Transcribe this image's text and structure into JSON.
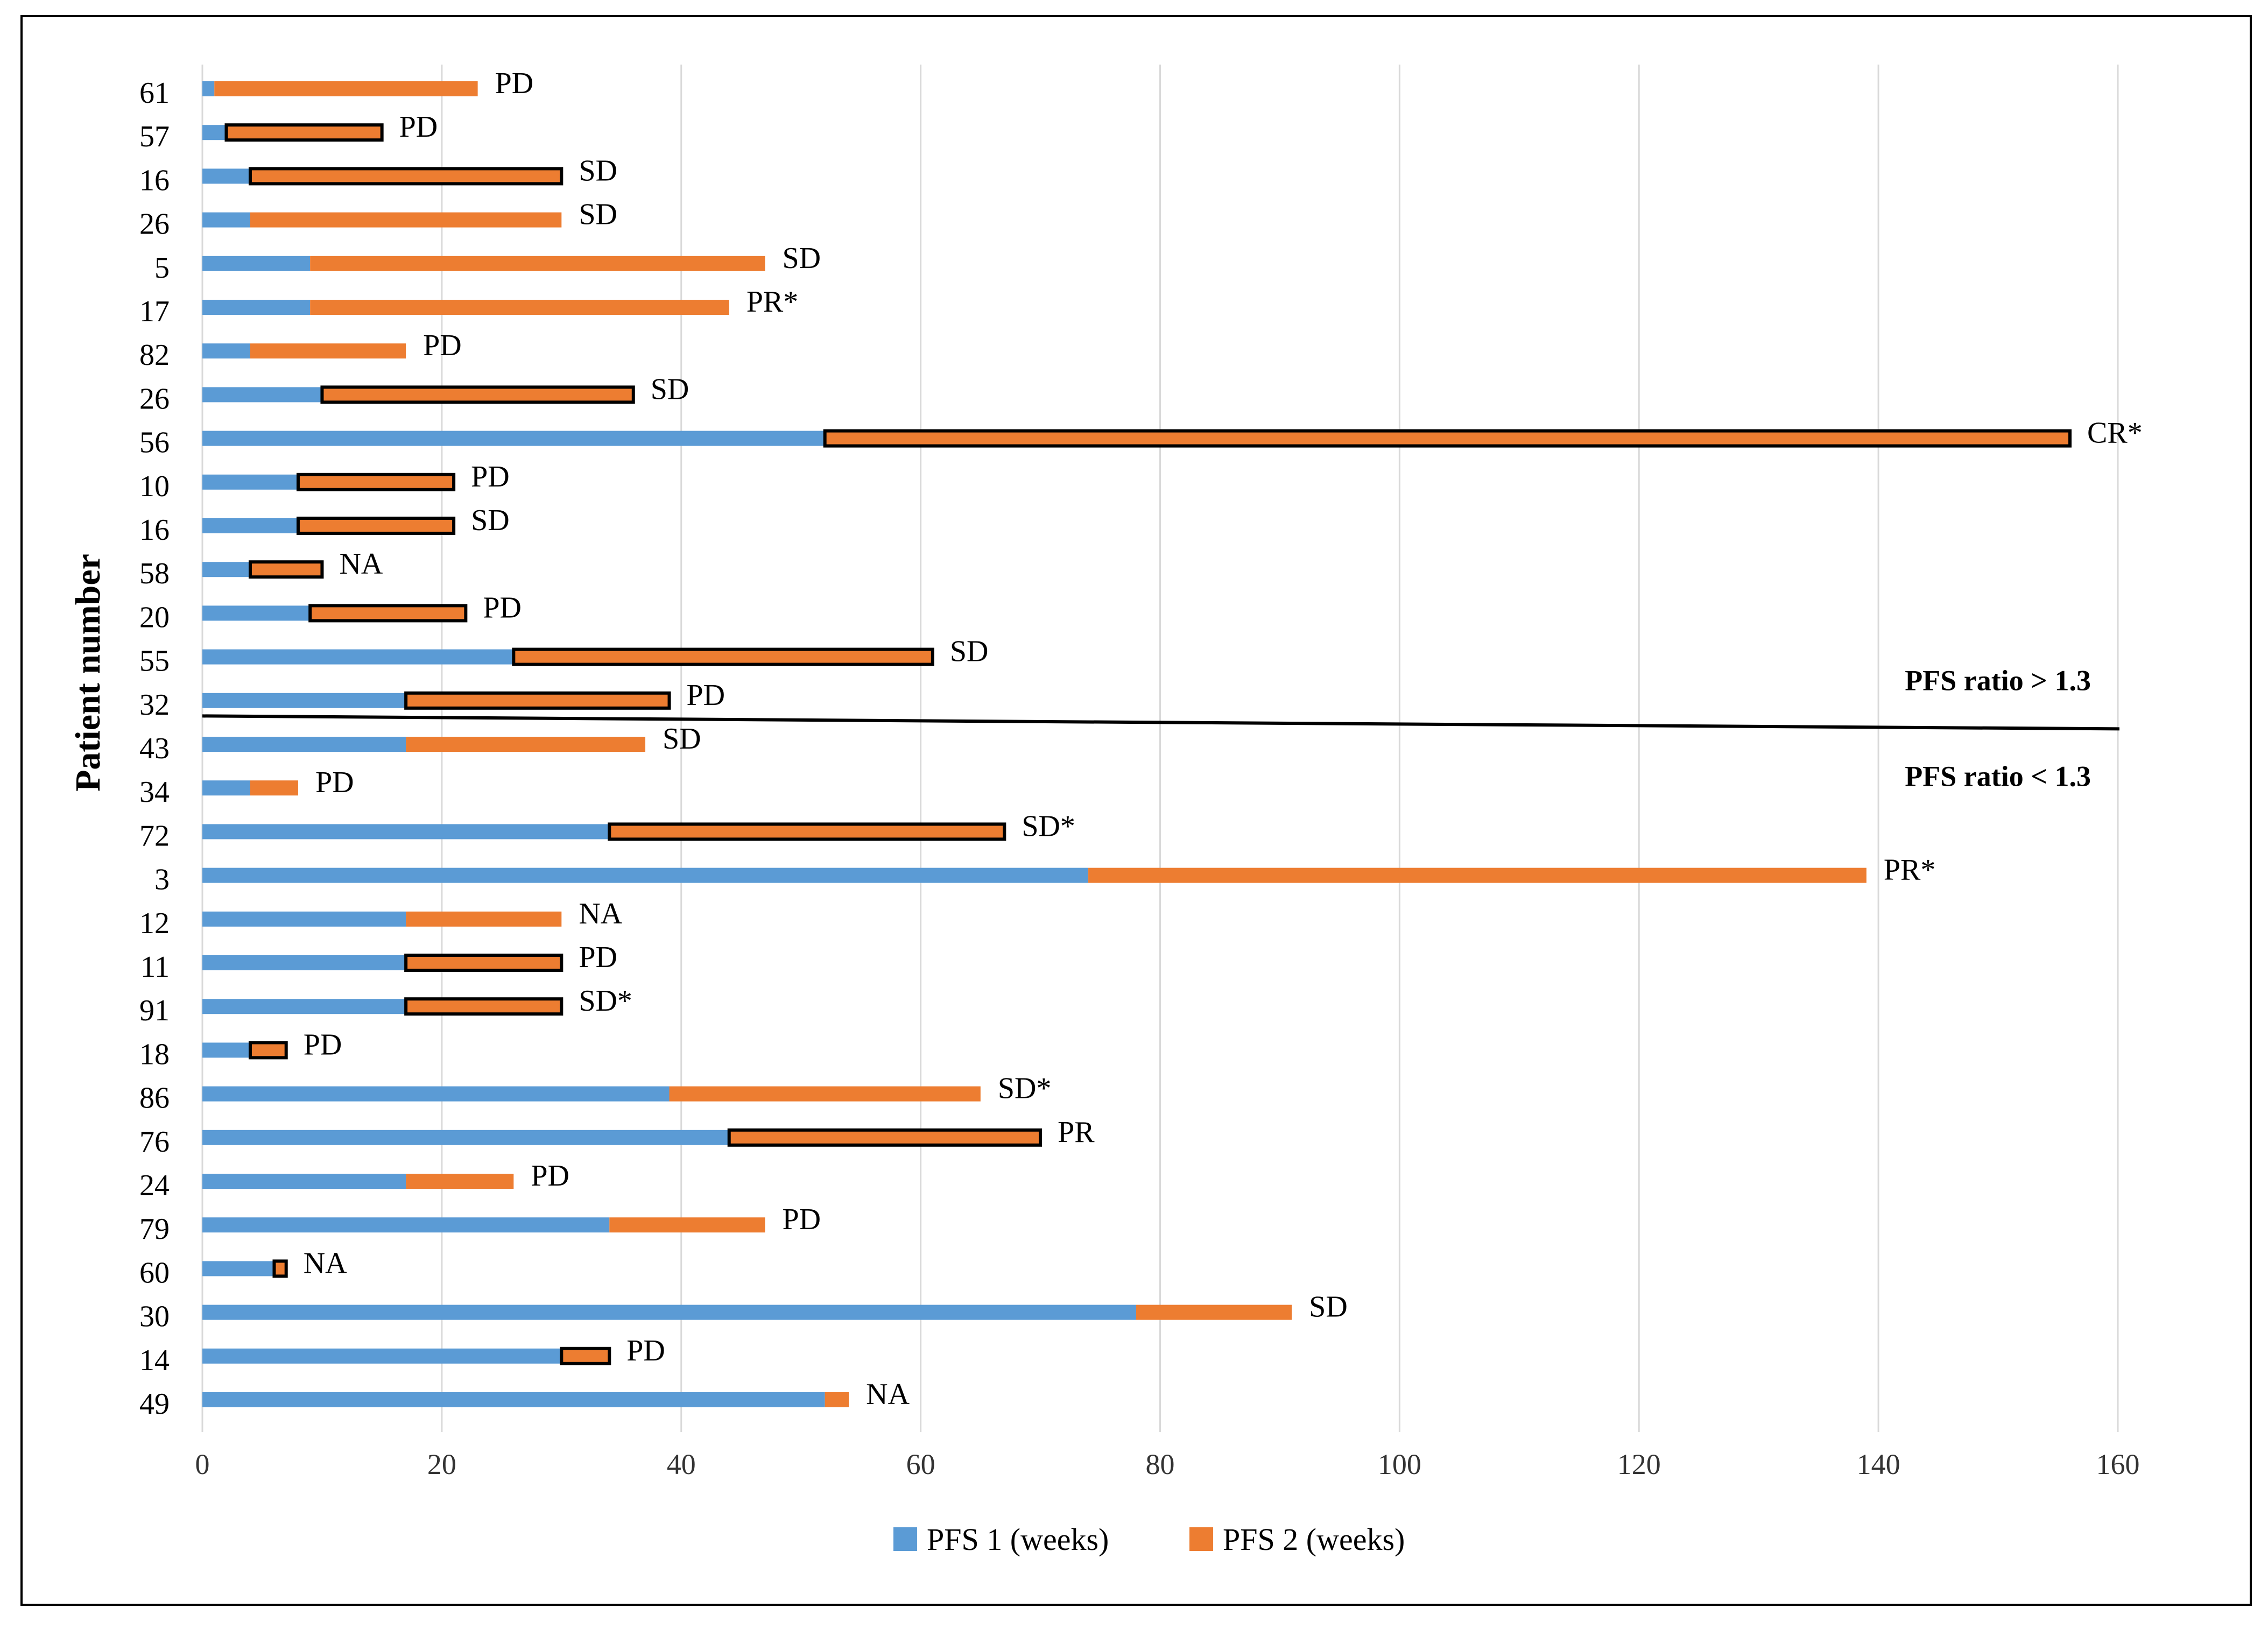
{
  "chart_data": {
    "type": "bar",
    "orientation": "horizontal",
    "stacked": true,
    "title": "",
    "xlabel": "",
    "ylabel": "Patient number",
    "xlim": [
      0,
      160
    ],
    "xticks": [
      0,
      20,
      40,
      60,
      80,
      100,
      120,
      140,
      160
    ],
    "grid": "vertical",
    "legend_position": "bottom",
    "colors": {
      "pfs1": "#5B9BD5",
      "pfs2": "#ED7D31",
      "outline": "#000000",
      "divider": "#000000",
      "gridline": "#D9D9D9"
    },
    "series": [
      {
        "name": "PFS 1 (weeks)",
        "key": "pfs1"
      },
      {
        "name": "PFS 2 (weeks)",
        "key": "pfs2"
      }
    ],
    "rows": [
      {
        "patient": "61",
        "pfs1": 1,
        "pfs2": 22,
        "response": "PD",
        "outlined": false
      },
      {
        "patient": "57",
        "pfs1": 2,
        "pfs2": 13,
        "response": "PD",
        "outlined": true
      },
      {
        "patient": "16",
        "pfs1": 4,
        "pfs2": 26,
        "response": "SD",
        "outlined": true
      },
      {
        "patient": "26",
        "pfs1": 4,
        "pfs2": 26,
        "response": "SD",
        "outlined": false
      },
      {
        "patient": "5",
        "pfs1": 9,
        "pfs2": 38,
        "response": "SD",
        "outlined": false
      },
      {
        "patient": "17",
        "pfs1": 9,
        "pfs2": 35,
        "response": "PR*",
        "outlined": false
      },
      {
        "patient": "82",
        "pfs1": 4,
        "pfs2": 13,
        "response": "PD",
        "outlined": false
      },
      {
        "patient": "26",
        "pfs1": 10,
        "pfs2": 26,
        "response": "SD",
        "outlined": true
      },
      {
        "patient": "56",
        "pfs1": 52,
        "pfs2": 104,
        "response": "CR*",
        "outlined": true
      },
      {
        "patient": "10",
        "pfs1": 8,
        "pfs2": 13,
        "response": "PD",
        "outlined": true
      },
      {
        "patient": "16",
        "pfs1": 8,
        "pfs2": 13,
        "response": "SD",
        "outlined": true
      },
      {
        "patient": "58",
        "pfs1": 4,
        "pfs2": 6,
        "response": "NA",
        "outlined": true
      },
      {
        "patient": "20",
        "pfs1": 9,
        "pfs2": 13,
        "response": "PD",
        "outlined": true
      },
      {
        "patient": "55",
        "pfs1": 26,
        "pfs2": 35,
        "response": "SD",
        "outlined": true
      },
      {
        "patient": "32",
        "pfs1": 17,
        "pfs2": 22,
        "response": "PD",
        "outlined": true
      },
      {
        "patient": "43",
        "pfs1": 17,
        "pfs2": 20,
        "response": "SD",
        "outlined": false
      },
      {
        "patient": "34",
        "pfs1": 4,
        "pfs2": 4,
        "response": "PD",
        "outlined": false
      },
      {
        "patient": "72",
        "pfs1": 34,
        "pfs2": 33,
        "response": "SD*",
        "outlined": true
      },
      {
        "patient": "3",
        "pfs1": 74,
        "pfs2": 65,
        "response": "PR*",
        "outlined": false
      },
      {
        "patient": "12",
        "pfs1": 17,
        "pfs2": 13,
        "response": "NA",
        "outlined": false
      },
      {
        "patient": "11",
        "pfs1": 17,
        "pfs2": 13,
        "response": "PD",
        "outlined": true
      },
      {
        "patient": "91",
        "pfs1": 17,
        "pfs2": 13,
        "response": "SD*",
        "outlined": true
      },
      {
        "patient": "18",
        "pfs1": 4,
        "pfs2": 3,
        "response": "PD",
        "outlined": true
      },
      {
        "patient": "86",
        "pfs1": 39,
        "pfs2": 26,
        "response": "SD*",
        "outlined": false
      },
      {
        "patient": "76",
        "pfs1": 44,
        "pfs2": 26,
        "response": "PR",
        "outlined": true
      },
      {
        "patient": "24",
        "pfs1": 17,
        "pfs2": 9,
        "response": "PD",
        "outlined": false
      },
      {
        "patient": "79",
        "pfs1": 34,
        "pfs2": 13,
        "response": "PD",
        "outlined": false
      },
      {
        "patient": "60",
        "pfs1": 6,
        "pfs2": 1,
        "response": "NA",
        "outlined": true
      },
      {
        "patient": "30",
        "pfs1": 78,
        "pfs2": 13,
        "response": "SD",
        "outlined": false
      },
      {
        "patient": "14",
        "pfs1": 30,
        "pfs2": 4,
        "response": "PD",
        "outlined": true
      },
      {
        "patient": "49",
        "pfs1": 52,
        "pfs2": 2,
        "response": "NA",
        "outlined": false
      }
    ],
    "annotations": [
      {
        "text": "PFS ratio > 1.3",
        "position": "above divider, right"
      },
      {
        "text": "PFS ratio < 1.3",
        "position": "below divider, right"
      }
    ],
    "divider_after_row": 14
  }
}
